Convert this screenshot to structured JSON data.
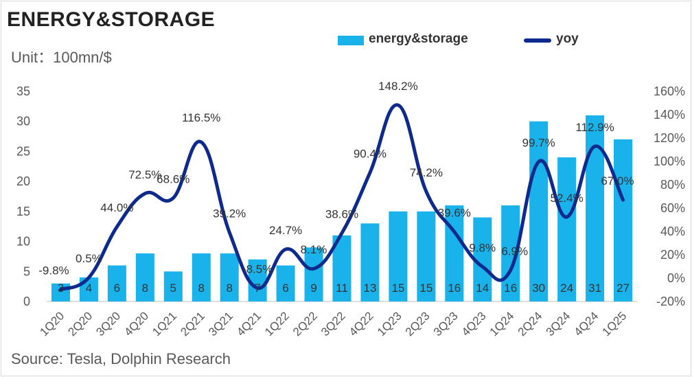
{
  "title": "ENERGY&STORAGE",
  "unit": "Unit：100mn/$",
  "source": "Source: Tesla, Dolphin Research",
  "colors": {
    "bar": "#1ab2ea",
    "line": "#0e2a8c"
  },
  "chart_data": {
    "type": "bar",
    "categories": [
      "1Q20",
      "2Q20",
      "3Q20",
      "4Q20",
      "1Q21",
      "2Q21",
      "3Q21",
      "4Q21",
      "1Q22",
      "2Q22",
      "3Q22",
      "4Q22",
      "1Q23",
      "2Q23",
      "3Q23",
      "4Q23",
      "1Q24",
      "2Q24",
      "3Q24",
      "4Q24",
      "1Q25"
    ],
    "series": [
      {
        "name": "energy&storage",
        "type": "bar",
        "axis": "left",
        "values": [
          3,
          4,
          6,
          8,
          5,
          8,
          8,
          7,
          6,
          9,
          11,
          13,
          15,
          15,
          16,
          14,
          16,
          30,
          24,
          31,
          27
        ],
        "labels": [
          "3",
          "4",
          "6",
          "8",
          "5",
          "8",
          "8",
          "7",
          "6",
          "9",
          "11",
          "13",
          "15",
          "15",
          "16",
          "14",
          "16",
          "30",
          "24",
          "31",
          "27"
        ]
      },
      {
        "name": "yoy",
        "type": "line",
        "axis": "right",
        "values": [
          -9.8,
          0.5,
          44.0,
          72.5,
          68.6,
          116.5,
          39.2,
          -8.5,
          24.7,
          8.1,
          38.6,
          90.4,
          148.2,
          74.2,
          39.6,
          9.8,
          6.9,
          99.7,
          52.4,
          112.9,
          67.0
        ],
        "labels": [
          "-9.8%",
          "0.5%",
          "44.0%",
          "72.5%",
          "68.6%",
          "116.5%",
          "39.2%",
          "-8.5%",
          "24.7%",
          "8.1%",
          "38.6%",
          "90.4%",
          "148.2%",
          "74.2%",
          "39.6%",
          "9.8%",
          "6.9%",
          "99.7%",
          "52.4%",
          "112.9%",
          "67.0%"
        ]
      }
    ],
    "ylim_left": [
      0,
      35
    ],
    "yticks_left": [
      "0",
      "5",
      "10",
      "15",
      "20",
      "25",
      "30",
      "35"
    ],
    "ylim_right": [
      -20,
      160
    ],
    "yticks_right": [
      "-20%",
      "0%",
      "20%",
      "40%",
      "60%",
      "80%",
      "100%",
      "120%",
      "140%",
      "160%"
    ],
    "legend": {
      "position": "top",
      "entries": [
        "energy&storage",
        "yoy"
      ]
    },
    "grid": false
  }
}
